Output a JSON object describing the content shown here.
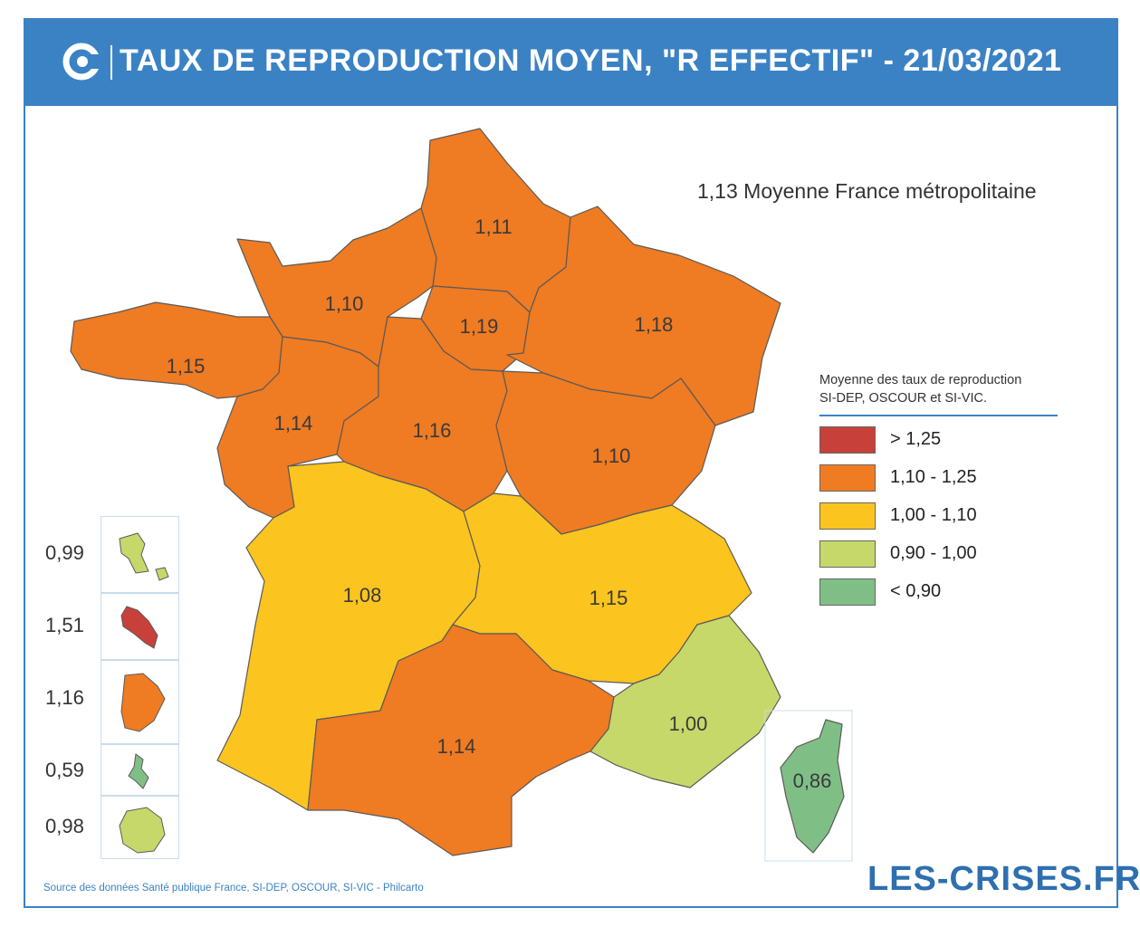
{
  "title": "TAUX DE REPRODUCTION MOYEN, \"R EFFECTIF\" - 21/03/2021",
  "average_label": "1,13 Moyenne France métropolitaine",
  "legend": {
    "title_line1": "Moyenne des taux de reproduction",
    "title_line2": "SI-DEP, OSCOUR et SI-VIC.",
    "items": [
      {
        "label": "> 1,25",
        "color": "#c8403a"
      },
      {
        "label": "1,10 - 1,25",
        "color": "#ef7b22"
      },
      {
        "label": "1,00 - 1,10",
        "color": "#fbc41e"
      },
      {
        "label": "0,90 - 1,00",
        "color": "#c6d86a"
      },
      {
        "label": "< 0,90",
        "color": "#7fbf86"
      }
    ]
  },
  "regions": [
    {
      "name": "Hauts-de-France",
      "value": "1,11",
      "color": "#ef7b22"
    },
    {
      "name": "Normandie",
      "value": "1,10",
      "color": "#ef7b22"
    },
    {
      "name": "Île-de-France",
      "value": "1,19",
      "color": "#ef7b22"
    },
    {
      "name": "Grand Est",
      "value": "1,18",
      "color": "#ef7b22"
    },
    {
      "name": "Bretagne",
      "value": "1,15",
      "color": "#ef7b22"
    },
    {
      "name": "Pays de la Loire",
      "value": "1,14",
      "color": "#ef7b22"
    },
    {
      "name": "Centre-Val de Loire",
      "value": "1,16",
      "color": "#ef7b22"
    },
    {
      "name": "Bourgogne-Franche-Comté",
      "value": "1,10",
      "color": "#ef7b22"
    },
    {
      "name": "Nouvelle-Aquitaine",
      "value": "1,08",
      "color": "#fbc41e"
    },
    {
      "name": "Auvergne-Rhône-Alpes",
      "value": "1,15",
      "color": "#ef7b22"
    },
    {
      "name": "Occitanie",
      "value": "1,14",
      "color": "#ef7b22"
    },
    {
      "name": "Provence-Alpes-Côte d'Azur",
      "value": "1,00",
      "color": "#c6d86a"
    },
    {
      "name": "Corse",
      "value": "0,86",
      "color": "#7fbf86"
    }
  ],
  "overseas": [
    {
      "name": "Guadeloupe",
      "value": "0,99",
      "color": "#c6d86a"
    },
    {
      "name": "Martinique",
      "value": "1,51",
      "color": "#c8403a"
    },
    {
      "name": "Guyane",
      "value": "1,16",
      "color": "#ef7b22"
    },
    {
      "name": "Mayotte",
      "value": "0,59",
      "color": "#7fbf86"
    },
    {
      "name": "La Réunion",
      "value": "0,98",
      "color": "#c6d86a"
    }
  ],
  "source": "Source des données Santé publique France, SI-DEP, OSCOUR, SI-VIC - Philcarto",
  "brand": "LES-CRISES.FR"
}
